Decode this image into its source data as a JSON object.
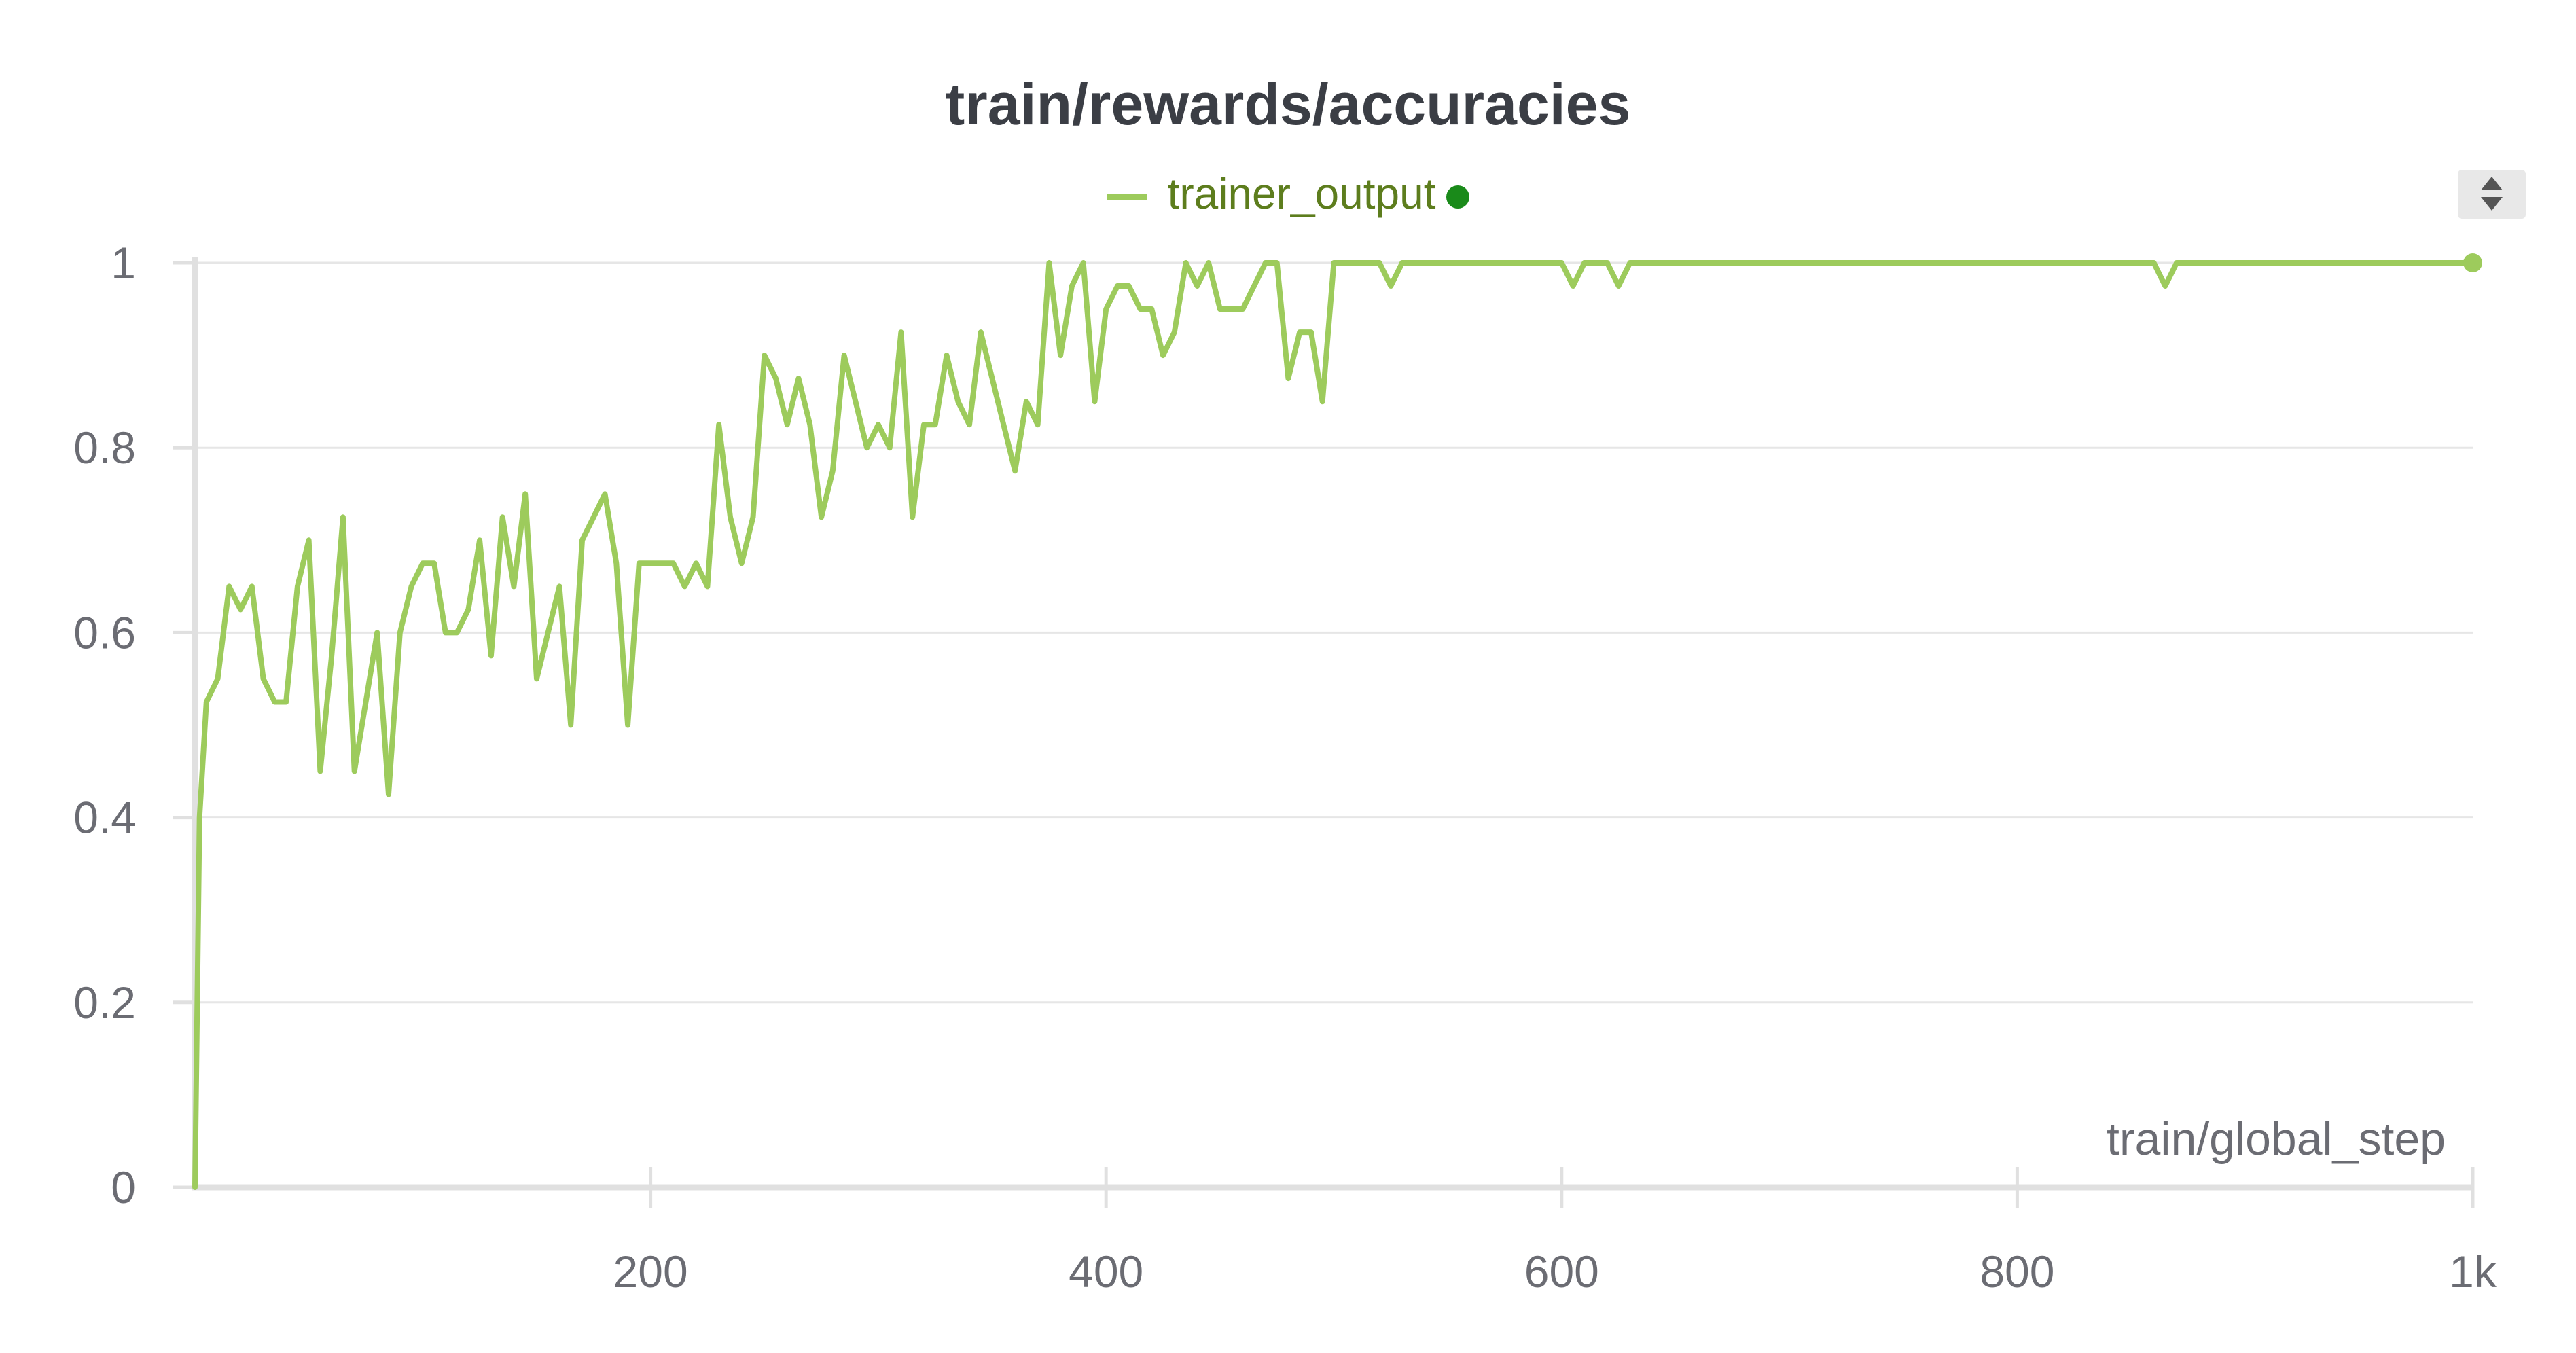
{
  "chart_data": {
    "type": "line",
    "title": "train/rewards/accuracies",
    "xlabel": "train/global_step",
    "ylabel": "",
    "xlim": [
      0,
      1000
    ],
    "ylim": [
      0,
      1
    ],
    "x_ticks": [
      200,
      400,
      600,
      800,
      1000
    ],
    "x_tick_labels": [
      "200",
      "400",
      "600",
      "800",
      "1k"
    ],
    "y_ticks": [
      0,
      0.2,
      0.4,
      0.6,
      0.8,
      1
    ],
    "y_tick_labels": [
      "0",
      "0.2",
      "0.4",
      "0.6",
      "0.8",
      "1"
    ],
    "grid": true,
    "legend_position": "top-center",
    "series": [
      {
        "name": "trainer_output",
        "color": "#9dcb5c",
        "x": [
          0,
          2,
          5,
          10,
          15,
          20,
          25,
          30,
          35,
          40,
          45,
          50,
          55,
          60,
          65,
          70,
          75,
          80,
          85,
          90,
          95,
          100,
          105,
          110,
          115,
          120,
          125,
          130,
          135,
          140,
          145,
          150,
          155,
          160,
          165,
          170,
          175,
          180,
          185,
          190,
          195,
          200,
          205,
          210,
          215,
          220,
          225,
          230,
          235,
          240,
          245,
          250,
          255,
          260,
          265,
          270,
          275,
          280,
          285,
          290,
          295,
          300,
          305,
          310,
          315,
          320,
          325,
          330,
          335,
          340,
          345,
          350,
          355,
          360,
          365,
          370,
          375,
          380,
          385,
          390,
          395,
          400,
          405,
          410,
          415,
          420,
          425,
          430,
          435,
          440,
          445,
          450,
          455,
          460,
          465,
          470,
          475,
          480,
          485,
          490,
          495,
          500,
          505,
          510,
          520,
          525,
          530,
          540,
          600,
          605,
          610,
          620,
          625,
          630,
          640,
          860,
          865,
          870,
          900,
          1000
        ],
        "values": [
          0,
          0.4,
          0.525,
          0.55,
          0.65,
          0.625,
          0.65,
          0.55,
          0.525,
          0.525,
          0.65,
          0.7,
          0.45,
          0.575,
          0.725,
          0.45,
          0.525,
          0.6,
          0.425,
          0.6,
          0.65,
          0.675,
          0.675,
          0.6,
          0.6,
          0.625,
          0.7,
          0.575,
          0.725,
          0.65,
          0.75,
          0.55,
          0.6,
          0.65,
          0.5,
          0.7,
          0.725,
          0.75,
          0.675,
          0.5,
          0.675,
          0.675,
          0.675,
          0.675,
          0.65,
          0.675,
          0.65,
          0.825,
          0.725,
          0.675,
          0.725,
          0.9,
          0.875,
          0.825,
          0.875,
          0.825,
          0.725,
          0.775,
          0.9,
          0.85,
          0.8,
          0.825,
          0.8,
          0.925,
          0.725,
          0.825,
          0.825,
          0.9,
          0.85,
          0.825,
          0.925,
          0.875,
          0.825,
          0.775,
          0.85,
          0.825,
          1.0,
          0.9,
          0.975,
          1.0,
          0.85,
          0.95,
          0.975,
          0.975,
          0.95,
          0.95,
          0.9,
          0.925,
          1.0,
          0.975,
          1.0,
          0.95,
          0.95,
          0.95,
          0.975,
          1.0,
          1.0,
          0.875,
          0.925,
          0.925,
          0.85,
          1.0,
          1.0,
          1.0,
          1.0,
          0.975,
          1.0,
          1.0,
          1.0,
          0.975,
          1.0,
          1.0,
          0.975,
          1.0,
          1.0,
          1.0,
          0.975,
          1.0,
          1.0,
          1.0
        ]
      }
    ]
  },
  "legend": {
    "label": "trainer_output"
  },
  "controls": {
    "scroll_icon": "up-down-arrows-icon"
  }
}
